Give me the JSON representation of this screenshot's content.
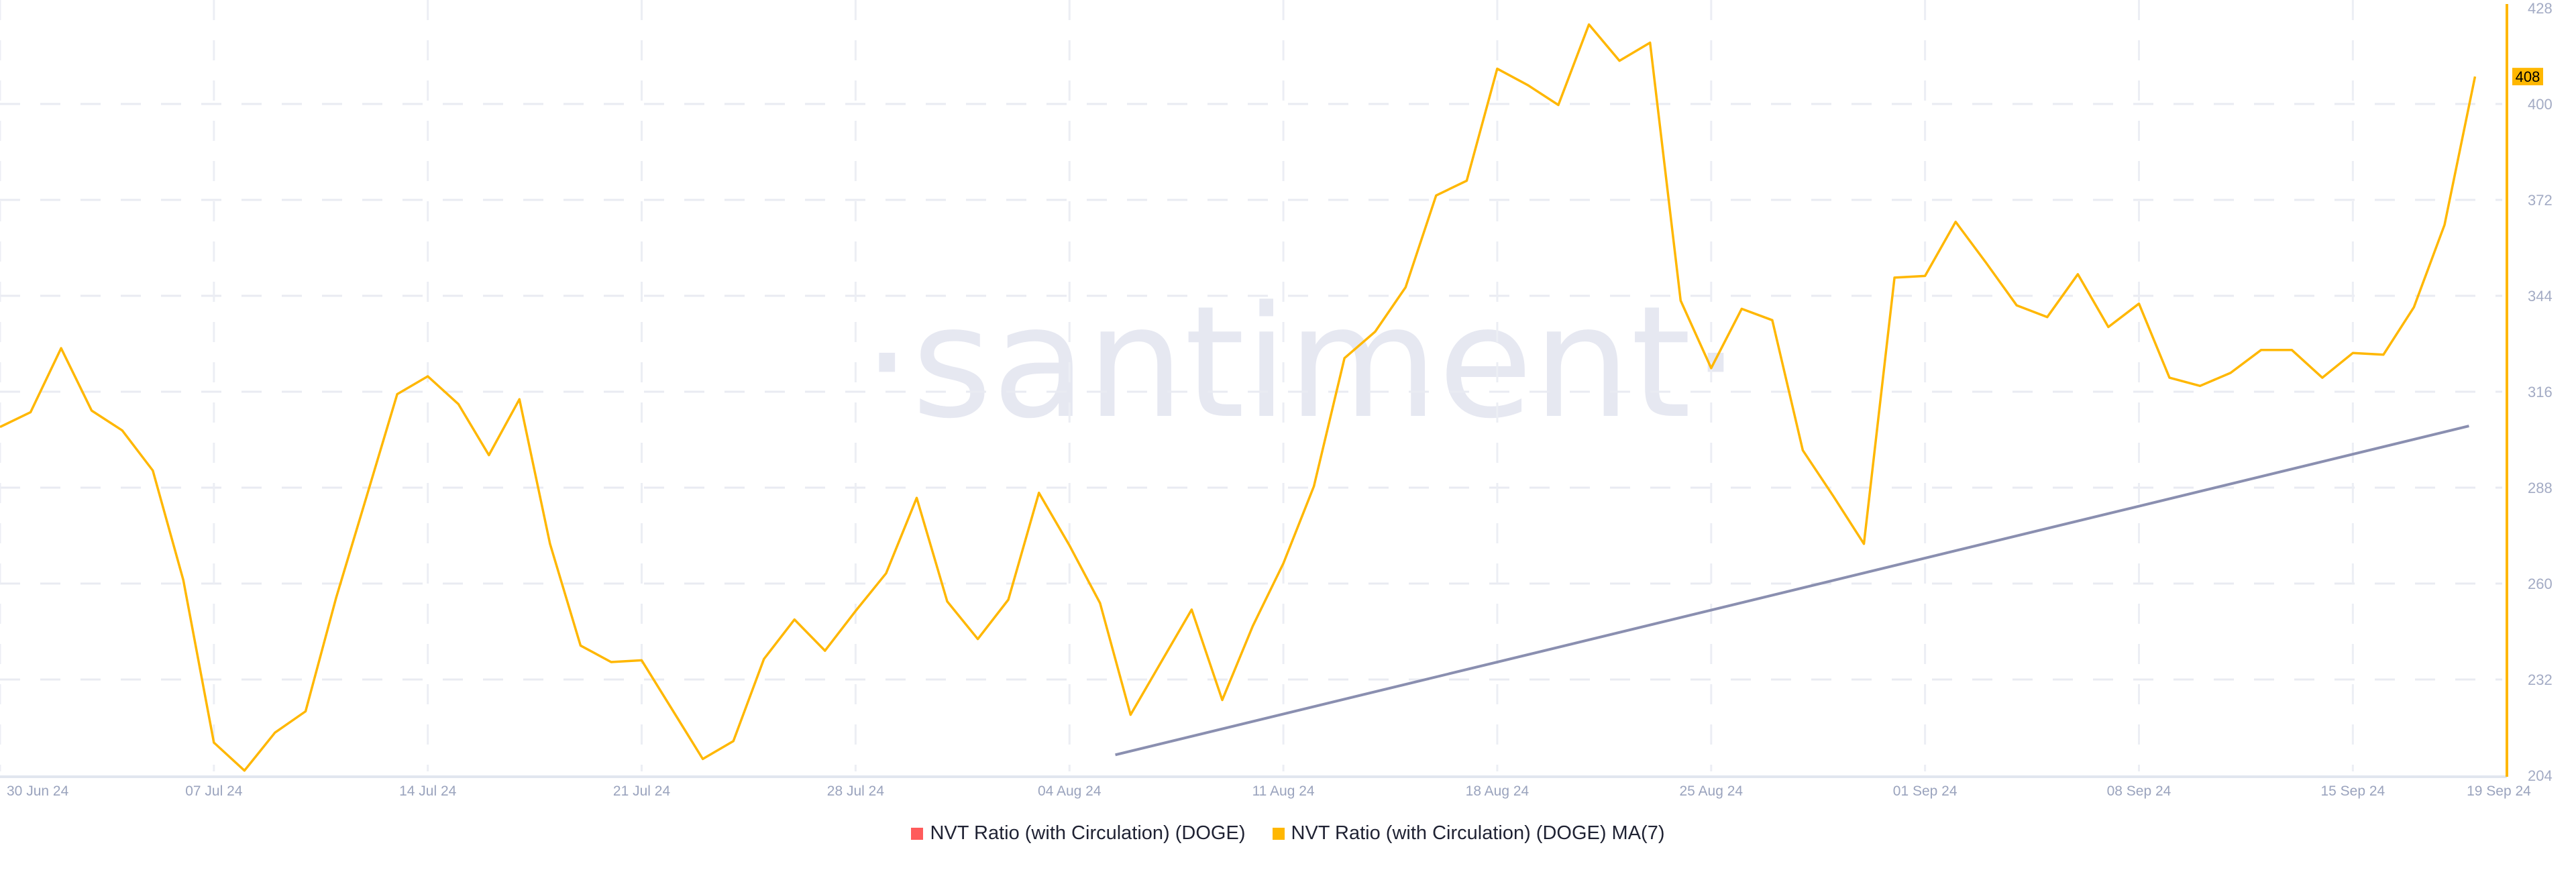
{
  "watermark": "·santiment·",
  "chart_data": {
    "type": "line",
    "title": "",
    "xlabel": "",
    "ylabel": "",
    "ylim": [
      204,
      428
    ],
    "y_ticks": [
      "428",
      "400",
      "372",
      "344",
      "316",
      "288",
      "260",
      "232",
      "204"
    ],
    "x_tick_labels": [
      "30 Jun 24",
      "07 Jul 24",
      "14 Jul 24",
      "21 Jul 24",
      "28 Jul 24",
      "04 Aug 24",
      "11 Aug 24",
      "18 Aug 24",
      "25 Aug 24",
      "01 Sep 24",
      "08 Sep 24",
      "15 Sep 24",
      "19 Sep 24"
    ],
    "x_start": "2024-06-30",
    "x_end": "2024-09-19",
    "x_frequency": "daily",
    "grid": true,
    "legend_position": "bottom",
    "legend": [
      {
        "name": "NVT Ratio (with Circulation) (DOGE)",
        "color": "#ff5b5b"
      },
      {
        "name": "NVT Ratio (with Circulation) (DOGE) MA(7)",
        "color": "#ffb700"
      }
    ],
    "series": [
      {
        "name": "NVT Ratio (with Circulation) (DOGE) MA(7)",
        "color": "#ffb700",
        "values": [
          305.7,
          310,
          328.7,
          310.5,
          304.7,
          293,
          261,
          213.6,
          205.4,
          216.5,
          222.7,
          255.8,
          285.5,
          315.3,
          320.5,
          312.4,
          297.5,
          313.8,
          271.6,
          241.9,
          237.1,
          237.6,
          223.2,
          208.8,
          214,
          238,
          249.5,
          240.4,
          252,
          263,
          285,
          254.8,
          243.8,
          255.3,
          286.5,
          271.1,
          254.3,
          221.7,
          237.1,
          252.4,
          226,
          247.6,
          265.9,
          288.4,
          325.8,
          333.5,
          346.5,
          373.3,
          377.6,
          410.3,
          405.5,
          399.7,
          423.2,
          412.6,
          417.9,
          342.6,
          322.9,
          340.2,
          336.9,
          298.9,
          285.5,
          271.6,
          349.3,
          349.8,
          365.6,
          353.6,
          341.2,
          337.8,
          350.3,
          334.9,
          341.7,
          320.1,
          317.7,
          321.5,
          328.2,
          328.2,
          320.1,
          327.3,
          326.8,
          340.7,
          364.7,
          408
        ]
      }
    ],
    "last_value_label": "408",
    "trendline": {
      "color": "#8a8fb0",
      "start": {
        "date": "2024-08-05",
        "value": 210
      },
      "end": {
        "date": "2024-09-18",
        "value": 306
      }
    }
  }
}
